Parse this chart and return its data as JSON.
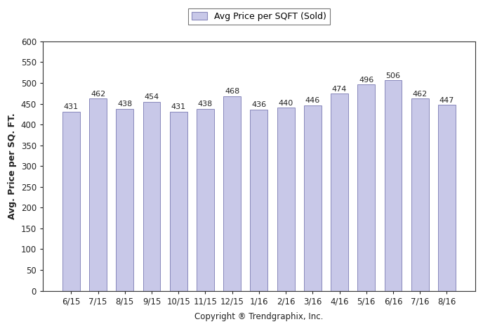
{
  "categories": [
    "6/15",
    "7/15",
    "8/15",
    "9/15",
    "10/15",
    "11/15",
    "12/15",
    "1/16",
    "2/16",
    "3/16",
    "4/16",
    "5/16",
    "6/16",
    "7/16",
    "8/16"
  ],
  "values": [
    431,
    462,
    438,
    454,
    431,
    438,
    468,
    436,
    440,
    446,
    474,
    496,
    506,
    462,
    447
  ],
  "bar_color": "#c8c8e8",
  "bar_edgecolor": "#8888bb",
  "ylabel": "Avg. Price per SQ. FT.",
  "xlabel": "Copyright ® Trendgraphix, Inc.",
  "ylim": [
    0,
    600
  ],
  "yticks": [
    0,
    50,
    100,
    150,
    200,
    250,
    300,
    350,
    400,
    450,
    500,
    550,
    600
  ],
  "legend_label": "Avg Price per SQFT (Sold)",
  "background_color": "#ffffff",
  "bar_width": 0.65,
  "label_fontsize": 8,
  "axis_label_fontsize": 9,
  "tick_fontsize": 8.5,
  "legend_fontsize": 9
}
